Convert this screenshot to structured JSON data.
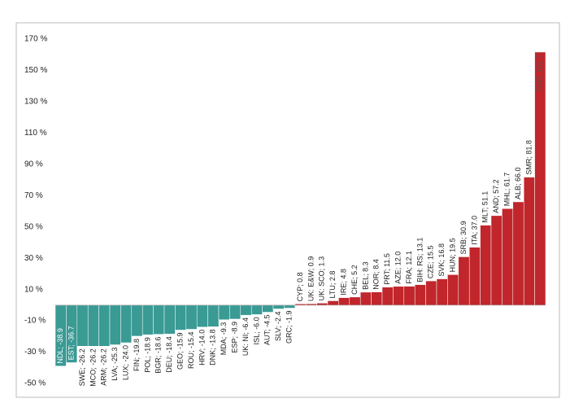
{
  "chart_data": {
    "type": "bar",
    "values": [
      -38.9,
      -36.7,
      -26.2,
      -26.2,
      -26.2,
      -25.3,
      -24.0,
      -19.8,
      -18.9,
      -18.6,
      -18.4,
      -15.9,
      -15.4,
      -14.0,
      -13.8,
      -9.3,
      -8.9,
      -6.4,
      -6.0,
      -4.5,
      -2.4,
      -1.9,
      0.8,
      0.9,
      1.3,
      2.8,
      4.8,
      5.2,
      8.3,
      8.4,
      11.5,
      12.0,
      12.1,
      13.1,
      15.5,
      16.8,
      19.5,
      30.9,
      37.0,
      51.1,
      57.2,
      61.7,
      66.0,
      81.8,
      161.7
    ],
    "value_labels": [
      "NDL; -38.9",
      "EST; -36.7",
      "SWE; -26.2",
      "MCO; -26.2",
      "ARM; -26.2",
      "LVA; -25.3",
      "LUX; -24.0",
      "FIN; -19.8",
      "POL; -18.9",
      "BGR; -18.6",
      "DEU; -18.4",
      "GEO; -15.9",
      "ROU; -15.4",
      "HRV; -14.0",
      "DNK; -13.8",
      "MDA; -9.3",
      "ESP; -8.9",
      "UK: NI; -6.4",
      "ISL; -6.0",
      "AUT; -4.5",
      "SLV; -2.4",
      "GRC; -1.9",
      "CYP; 0.8",
      "UK: E&W; 0.9",
      "UK: SCO; 1.3",
      "LTU; 2.8",
      "IRE; 4.8",
      "CHE; 5.2",
      "BEL; 8.3",
      "NOR; 8.4",
      "PRT; 11.5",
      "AZE; 12.0",
      "FRA; 12.1",
      "BIH: RS; 13.1",
      "CZE; 15.5",
      "SVK; 16.8",
      "HUN; 19.5",
      "SRB; 30.9",
      "ITA; 37.0",
      "MLT; 51.1",
      "AND; 57.2",
      "MHL; 61.7",
      "ALB; 66.0",
      "SMR; 81.8",
      "TUR; 161.7"
    ],
    "negative_color": "#3a9a94",
    "positive_color": "#c0262b",
    "ylim": [
      -50,
      170
    ],
    "yticks": [
      {
        "value": -50,
        "label": "-50 %"
      },
      {
        "value": -30,
        "label": "-30 %"
      },
      {
        "value": -10,
        "label": "-10 %"
      },
      {
        "value": 10,
        "label": "10 %"
      },
      {
        "value": 30,
        "label": "30 %"
      },
      {
        "value": 50,
        "label": "50 %"
      },
      {
        "value": 70,
        "label": "70 %"
      },
      {
        "value": 90,
        "label": "90 %"
      },
      {
        "value": 110,
        "label": "110 %"
      },
      {
        "value": 130,
        "label": "130 %"
      },
      {
        "value": 150,
        "label": "150 %"
      },
      {
        "value": 170,
        "label": "170 %"
      }
    ]
  }
}
